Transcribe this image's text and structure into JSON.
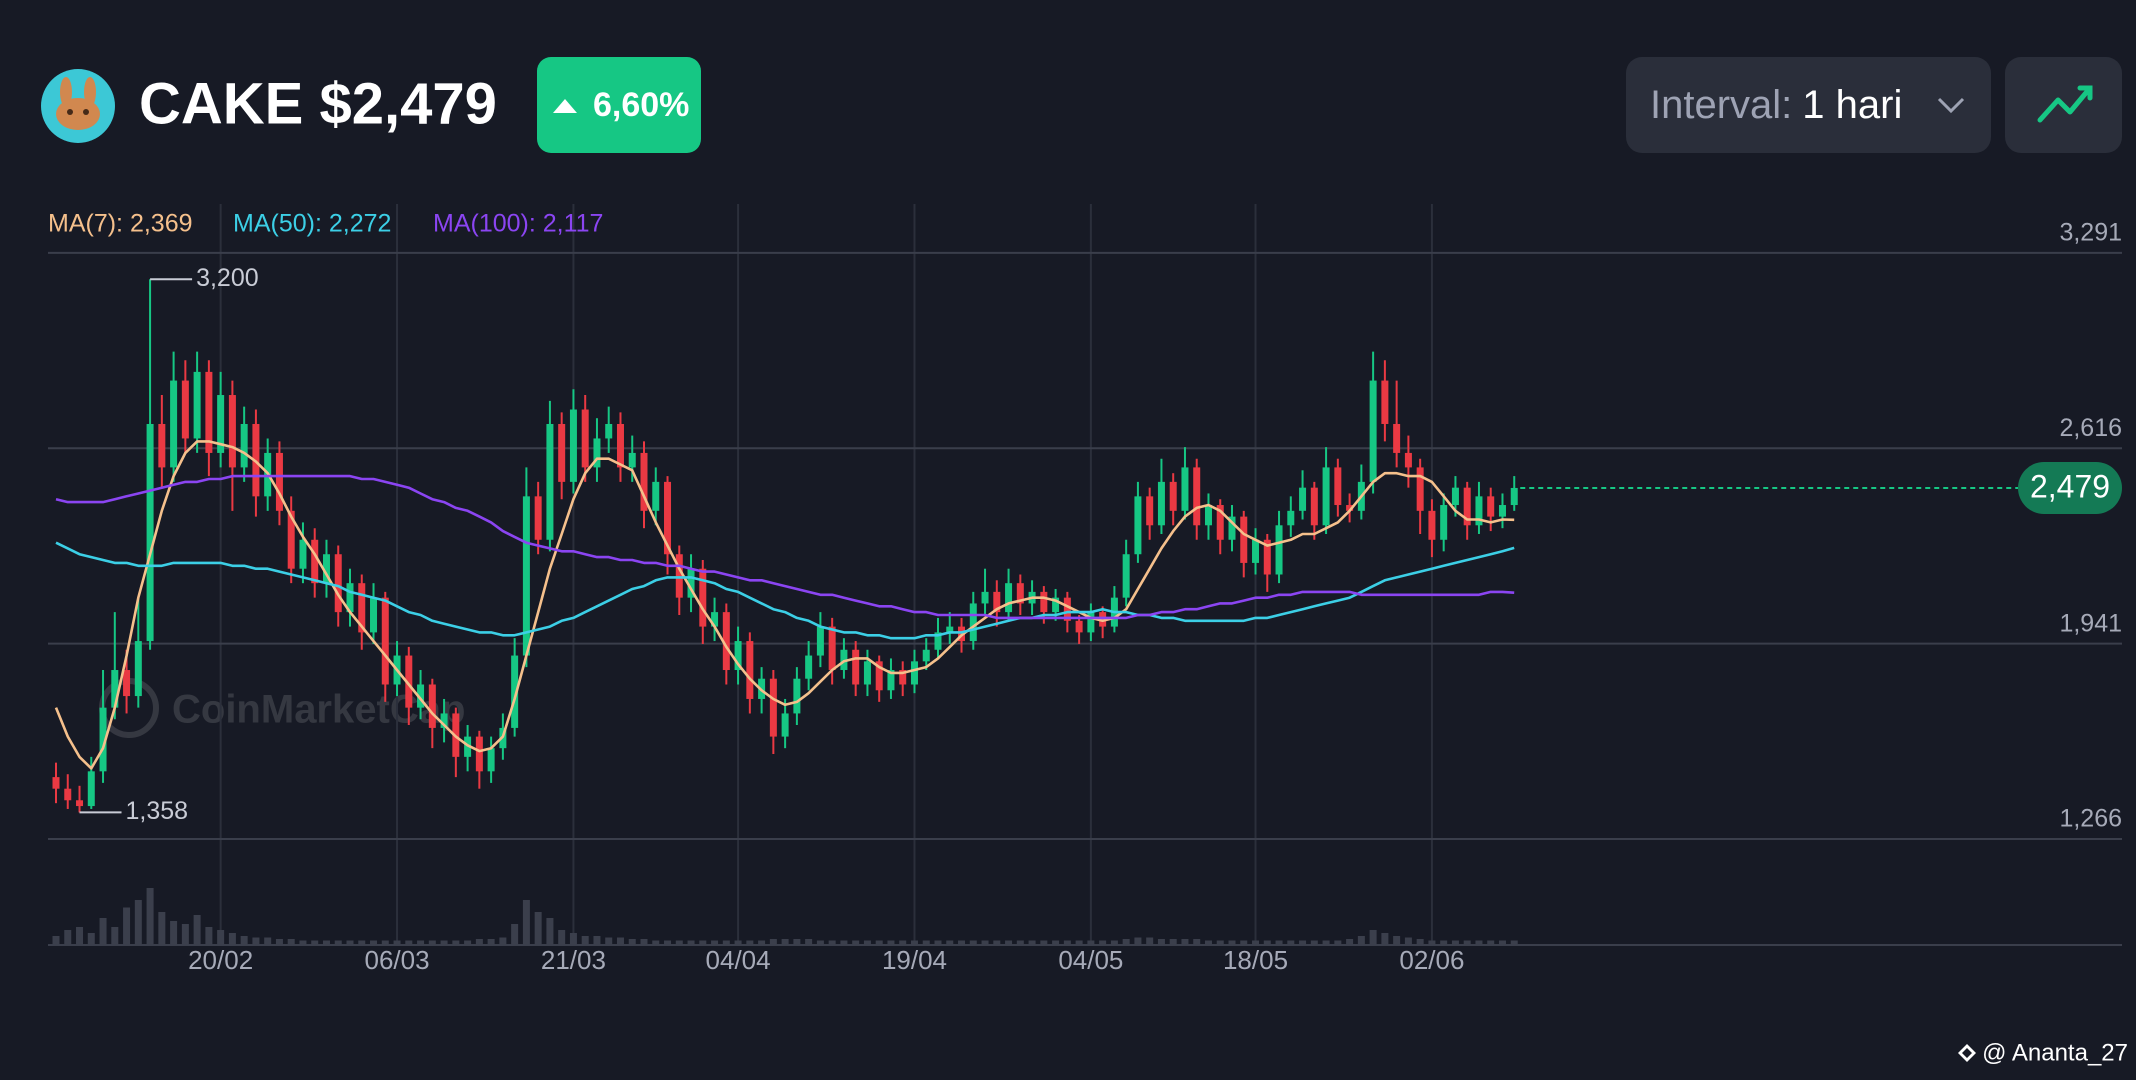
{
  "header": {
    "symbol_price": "CAKE $2,479",
    "change": "6,60%",
    "interval_label": "Interval:",
    "interval_value": "1 hari"
  },
  "watermark": "CoinMarketCap",
  "credit": "@ Ananta_27",
  "chart_data": {
    "type": "candlestick",
    "categories": [
      null,
      null,
      null,
      null,
      null,
      null,
      null,
      null,
      null,
      null,
      null,
      null,
      null,
      null,
      "20/02",
      null,
      null,
      null,
      null,
      null,
      null,
      null,
      null,
      null,
      null,
      null,
      null,
      null,
      null,
      "06/03",
      null,
      null,
      null,
      null,
      null,
      null,
      null,
      null,
      null,
      null,
      null,
      null,
      null,
      null,
      "21/03",
      null,
      null,
      null,
      null,
      null,
      null,
      null,
      null,
      null,
      null,
      null,
      null,
      null,
      "04/04",
      null,
      null,
      null,
      null,
      null,
      null,
      null,
      null,
      null,
      null,
      null,
      null,
      null,
      null,
      "19/04",
      null,
      null,
      null,
      null,
      null,
      null,
      null,
      null,
      null,
      null,
      null,
      null,
      null,
      null,
      "04/05",
      null,
      null,
      null,
      null,
      null,
      null,
      null,
      null,
      null,
      null,
      null,
      null,
      null,
      "18/05",
      null,
      null,
      null,
      null,
      null,
      null,
      null,
      null,
      null,
      null,
      null,
      null,
      null,
      null,
      "02/06",
      null,
      null,
      null,
      null,
      null,
      null,
      null
    ],
    "open": [
      1.48,
      1.44,
      1.4,
      1.38,
      1.5,
      1.72,
      1.85,
      1.76,
      1.95,
      2.7,
      2.55,
      2.85,
      2.65,
      2.88,
      2.6,
      2.8,
      2.55,
      2.7,
      2.45,
      2.6,
      2.4,
      2.2,
      2.3,
      2.15,
      2.25,
      2.05,
      2.15,
      1.98,
      2.1,
      1.8,
      1.9,
      1.72,
      1.8,
      1.65,
      1.7,
      1.55,
      1.62,
      1.5,
      1.58,
      1.65,
      1.9,
      2.45,
      2.3,
      2.7,
      2.5,
      2.75,
      2.55,
      2.65,
      2.7,
      2.55,
      2.6,
      2.4,
      2.5,
      2.25,
      2.1,
      2.2,
      2.0,
      2.05,
      1.85,
      1.95,
      1.75,
      1.82,
      1.62,
      1.7,
      1.82,
      1.9,
      2.0,
      1.85,
      1.92,
      1.8,
      1.88,
      1.78,
      1.85,
      1.8,
      1.88,
      1.92,
      1.98,
      2.0,
      1.95,
      2.08,
      2.12,
      2.05,
      2.15,
      2.08,
      2.12,
      2.05,
      2.1,
      2.02,
      1.98,
      2.05,
      2.0,
      2.1,
      2.25,
      2.45,
      2.35,
      2.5,
      2.4,
      2.55,
      2.35,
      2.42,
      2.3,
      2.38,
      2.22,
      2.3,
      2.18,
      2.35,
      2.4,
      2.48,
      2.35,
      2.55,
      2.42,
      2.4,
      2.5,
      2.85,
      2.7,
      2.6,
      2.55,
      2.4,
      2.3,
      2.42,
      2.48,
      2.35,
      2.45,
      2.38,
      2.42
    ],
    "high": [
      1.53,
      1.49,
      1.45,
      1.55,
      1.85,
      2.05,
      1.92,
      2.1,
      3.2,
      2.8,
      2.95,
      2.92,
      2.95,
      2.92,
      2.88,
      2.85,
      2.76,
      2.75,
      2.65,
      2.64,
      2.45,
      2.36,
      2.34,
      2.3,
      2.28,
      2.2,
      2.18,
      2.15,
      2.12,
      1.95,
      1.93,
      1.85,
      1.82,
      1.75,
      1.72,
      1.66,
      1.64,
      1.62,
      1.7,
      1.96,
      2.55,
      2.5,
      2.78,
      2.74,
      2.82,
      2.8,
      2.72,
      2.76,
      2.74,
      2.66,
      2.64,
      2.55,
      2.52,
      2.28,
      2.25,
      2.23,
      2.1,
      2.08,
      2.0,
      1.98,
      1.86,
      1.85,
      1.75,
      1.86,
      1.95,
      2.05,
      2.03,
      1.96,
      1.95,
      1.92,
      1.9,
      1.89,
      1.88,
      1.92,
      1.96,
      2.03,
      2.05,
      2.03,
      2.12,
      2.2,
      2.16,
      2.2,
      2.18,
      2.16,
      2.14,
      2.13,
      2.12,
      2.04,
      2.08,
      2.07,
      2.14,
      2.3,
      2.5,
      2.48,
      2.58,
      2.53,
      2.62,
      2.58,
      2.46,
      2.44,
      2.42,
      2.4,
      2.34,
      2.32,
      2.4,
      2.45,
      2.54,
      2.5,
      2.62,
      2.58,
      2.46,
      2.56,
      2.95,
      2.92,
      2.85,
      2.66,
      2.58,
      2.44,
      2.46,
      2.52,
      2.5,
      2.5,
      2.48,
      2.46,
      2.52
    ],
    "low": [
      1.39,
      1.37,
      1.358,
      1.37,
      1.46,
      1.68,
      1.7,
      1.72,
      1.92,
      2.48,
      2.5,
      2.6,
      2.6,
      2.52,
      2.55,
      2.4,
      2.5,
      2.38,
      2.4,
      2.35,
      2.15,
      2.15,
      2.1,
      2.1,
      2.0,
      2.0,
      1.92,
      1.94,
      1.74,
      1.76,
      1.66,
      1.68,
      1.58,
      1.6,
      1.48,
      1.5,
      1.44,
      1.46,
      1.54,
      1.62,
      1.86,
      2.25,
      2.26,
      2.44,
      2.46,
      2.5,
      2.5,
      2.6,
      2.5,
      2.5,
      2.34,
      2.35,
      2.18,
      2.04,
      2.05,
      1.94,
      1.95,
      1.8,
      1.8,
      1.7,
      1.7,
      1.56,
      1.58,
      1.66,
      1.78,
      1.86,
      1.8,
      1.82,
      1.76,
      1.76,
      1.74,
      1.75,
      1.76,
      1.77,
      1.85,
      1.89,
      1.94,
      1.91,
      1.92,
      2.04,
      2.0,
      2.02,
      2.04,
      2.04,
      2.01,
      2.02,
      1.98,
      1.94,
      1.95,
      1.96,
      1.98,
      2.07,
      2.22,
      2.3,
      2.32,
      2.35,
      2.37,
      2.3,
      2.3,
      2.25,
      2.26,
      2.17,
      2.18,
      2.12,
      2.15,
      2.31,
      2.37,
      2.3,
      2.32,
      2.38,
      2.36,
      2.37,
      2.46,
      2.64,
      2.55,
      2.48,
      2.32,
      2.24,
      2.26,
      2.38,
      2.3,
      2.32,
      2.33,
      2.34,
      2.4
    ],
    "close": [
      1.44,
      1.4,
      1.38,
      1.5,
      1.72,
      1.85,
      1.76,
      1.95,
      2.7,
      2.55,
      2.85,
      2.65,
      2.88,
      2.6,
      2.8,
      2.55,
      2.7,
      2.45,
      2.6,
      2.4,
      2.2,
      2.3,
      2.15,
      2.25,
      2.05,
      2.15,
      1.98,
      2.1,
      1.8,
      1.9,
      1.72,
      1.8,
      1.65,
      1.7,
      1.55,
      1.62,
      1.5,
      1.58,
      1.65,
      1.9,
      2.45,
      2.3,
      2.7,
      2.5,
      2.75,
      2.55,
      2.65,
      2.7,
      2.55,
      2.6,
      2.4,
      2.5,
      2.25,
      2.1,
      2.2,
      2.0,
      2.05,
      1.85,
      1.95,
      1.75,
      1.82,
      1.62,
      1.7,
      1.82,
      1.9,
      2.0,
      1.85,
      1.92,
      1.8,
      1.88,
      1.78,
      1.85,
      1.8,
      1.88,
      1.92,
      1.98,
      2.0,
      1.95,
      2.08,
      2.12,
      2.05,
      2.15,
      2.08,
      2.12,
      2.05,
      2.1,
      2.02,
      1.98,
      2.05,
      2.0,
      2.1,
      2.25,
      2.45,
      2.35,
      2.5,
      2.4,
      2.55,
      2.35,
      2.42,
      2.3,
      2.38,
      2.22,
      2.3,
      2.18,
      2.35,
      2.4,
      2.48,
      2.35,
      2.55,
      2.42,
      2.4,
      2.5,
      2.85,
      2.7,
      2.6,
      2.55,
      2.4,
      2.3,
      2.42,
      2.48,
      2.35,
      2.45,
      2.38,
      2.42,
      2.479
    ],
    "volume": [
      6,
      10,
      12,
      8,
      18,
      12,
      25,
      30,
      38,
      22,
      16,
      14,
      20,
      12,
      10,
      8,
      6,
      5,
      5,
      4,
      4,
      3,
      3,
      3,
      3,
      3,
      3,
      3,
      3,
      3,
      3,
      3,
      3,
      3,
      3,
      3,
      4,
      4,
      5,
      14,
      30,
      22,
      18,
      10,
      8,
      6,
      6,
      5,
      5,
      4,
      4,
      3,
      3,
      3,
      3,
      3,
      3,
      3,
      3,
      3,
      3,
      4,
      4,
      4,
      4,
      3,
      3,
      3,
      3,
      3,
      3,
      3,
      3,
      3,
      3,
      3,
      3,
      3,
      3,
      3,
      3,
      3,
      3,
      3,
      3,
      3,
      3,
      3,
      3,
      3,
      3,
      4,
      5,
      5,
      4,
      4,
      4,
      4,
      3,
      3,
      3,
      3,
      3,
      3,
      3,
      3,
      3,
      3,
      3,
      3,
      4,
      6,
      10,
      8,
      6,
      5,
      4,
      3,
      3,
      3,
      3,
      3,
      3,
      3,
      3
    ],
    "volume_lim": [
      0,
      100
    ],
    "series": [
      {
        "name": "MA(7): 2,369",
        "color": "#f5c08c",
        "values": [
          1.72,
          1.62,
          1.55,
          1.51,
          1.58,
          1.72,
          1.9,
          2.1,
          2.25,
          2.4,
          2.52,
          2.6,
          2.64,
          2.64,
          2.63,
          2.62,
          2.6,
          2.57,
          2.53,
          2.46,
          2.38,
          2.31,
          2.25,
          2.18,
          2.11,
          2.05,
          2.0,
          1.95,
          1.9,
          1.85,
          1.8,
          1.75,
          1.7,
          1.66,
          1.62,
          1.59,
          1.57,
          1.58,
          1.62,
          1.75,
          1.9,
          2.05,
          2.2,
          2.32,
          2.44,
          2.53,
          2.58,
          2.58,
          2.56,
          2.54,
          2.45,
          2.36,
          2.28,
          2.2,
          2.13,
          2.06,
          2.0,
          1.93,
          1.87,
          1.82,
          1.78,
          1.75,
          1.73,
          1.74,
          1.77,
          1.81,
          1.85,
          1.88,
          1.89,
          1.89,
          1.86,
          1.84,
          1.84,
          1.85,
          1.86,
          1.89,
          1.93,
          1.97,
          2.0,
          2.03,
          2.06,
          2.08,
          2.09,
          2.1,
          2.1,
          2.09,
          2.07,
          2.05,
          2.03,
          2.02,
          2.03,
          2.06,
          2.13,
          2.2,
          2.27,
          2.33,
          2.38,
          2.41,
          2.42,
          2.4,
          2.36,
          2.32,
          2.3,
          2.28,
          2.29,
          2.3,
          2.32,
          2.32,
          2.34,
          2.36,
          2.4,
          2.45,
          2.5,
          2.53,
          2.53,
          2.52,
          2.52,
          2.5,
          2.45,
          2.4,
          2.37,
          2.37,
          2.36,
          2.37,
          2.369
        ]
      },
      {
        "name": "MA(50): 2,272",
        "color": "#3ccfe6",
        "values": [
          2.29,
          2.27,
          2.25,
          2.24,
          2.23,
          2.22,
          2.22,
          2.21,
          2.21,
          2.21,
          2.22,
          2.22,
          2.22,
          2.22,
          2.22,
          2.21,
          2.21,
          2.2,
          2.2,
          2.19,
          2.18,
          2.17,
          2.16,
          2.15,
          2.14,
          2.12,
          2.11,
          2.1,
          2.09,
          2.07,
          2.05,
          2.04,
          2.02,
          2.01,
          2.0,
          1.99,
          1.98,
          1.98,
          1.97,
          1.97,
          1.98,
          1.99,
          2.0,
          2.02,
          2.03,
          2.05,
          2.07,
          2.09,
          2.11,
          2.13,
          2.14,
          2.16,
          2.17,
          2.17,
          2.17,
          2.16,
          2.15,
          2.13,
          2.12,
          2.1,
          2.08,
          2.06,
          2.05,
          2.03,
          2.02,
          2.0,
          1.99,
          1.98,
          1.98,
          1.97,
          1.97,
          1.96,
          1.96,
          1.96,
          1.97,
          1.97,
          1.98,
          1.98,
          1.99,
          2.0,
          2.01,
          2.02,
          2.03,
          2.03,
          2.04,
          2.04,
          2.05,
          2.05,
          2.05,
          2.06,
          2.05,
          2.05,
          2.04,
          2.04,
          2.03,
          2.03,
          2.02,
          2.02,
          2.02,
          2.02,
          2.02,
          2.02,
          2.03,
          2.03,
          2.04,
          2.05,
          2.06,
          2.07,
          2.08,
          2.09,
          2.1,
          2.12,
          2.14,
          2.16,
          2.17,
          2.18,
          2.19,
          2.2,
          2.21,
          2.22,
          2.23,
          2.24,
          2.25,
          2.26,
          2.272
        ]
      },
      {
        "name": "MA(100): 2,117",
        "color": "#8b45f2",
        "values": [
          2.44,
          2.43,
          2.43,
          2.43,
          2.43,
          2.44,
          2.45,
          2.46,
          2.47,
          2.48,
          2.49,
          2.5,
          2.5,
          2.51,
          2.51,
          2.52,
          2.52,
          2.52,
          2.52,
          2.52,
          2.52,
          2.52,
          2.52,
          2.52,
          2.52,
          2.52,
          2.51,
          2.51,
          2.5,
          2.49,
          2.48,
          2.46,
          2.44,
          2.43,
          2.41,
          2.4,
          2.38,
          2.36,
          2.33,
          2.31,
          2.29,
          2.28,
          2.27,
          2.26,
          2.26,
          2.25,
          2.24,
          2.24,
          2.23,
          2.23,
          2.22,
          2.22,
          2.21,
          2.21,
          2.2,
          2.19,
          2.19,
          2.18,
          2.17,
          2.16,
          2.16,
          2.15,
          2.14,
          2.13,
          2.12,
          2.11,
          2.11,
          2.1,
          2.09,
          2.08,
          2.07,
          2.07,
          2.06,
          2.05,
          2.05,
          2.04,
          2.04,
          2.04,
          2.04,
          2.04,
          2.03,
          2.03,
          2.03,
          2.03,
          2.03,
          2.03,
          2.03,
          2.03,
          2.03,
          2.03,
          2.03,
          2.03,
          2.04,
          2.04,
          2.05,
          2.05,
          2.06,
          2.06,
          2.07,
          2.08,
          2.08,
          2.09,
          2.1,
          2.1,
          2.11,
          2.11,
          2.12,
          2.12,
          2.12,
          2.12,
          2.12,
          2.11,
          2.11,
          2.11,
          2.11,
          2.11,
          2.11,
          2.11,
          2.11,
          2.11,
          2.11,
          2.11,
          2.12,
          2.12,
          2.117
        ]
      }
    ],
    "up_color": "#16c784",
    "down_color": "#ea3943",
    "volume_color": "#3b3f4c",
    "ylim": [
      0.9,
      3.46
    ],
    "yticks": [
      {
        "value": 3.291,
        "label": "3,291"
      },
      {
        "value": 2.616,
        "label": "2,616"
      },
      {
        "value": 1.941,
        "label": "1,941"
      },
      {
        "value": 1.266,
        "label": "1,266"
      }
    ],
    "grid": true,
    "max_label": {
      "value": 3.2,
      "label": "3,200"
    },
    "min_label": {
      "value": 1.358,
      "label": "1,358"
    },
    "current_price": {
      "value": 2.479,
      "label": "2,479"
    }
  }
}
